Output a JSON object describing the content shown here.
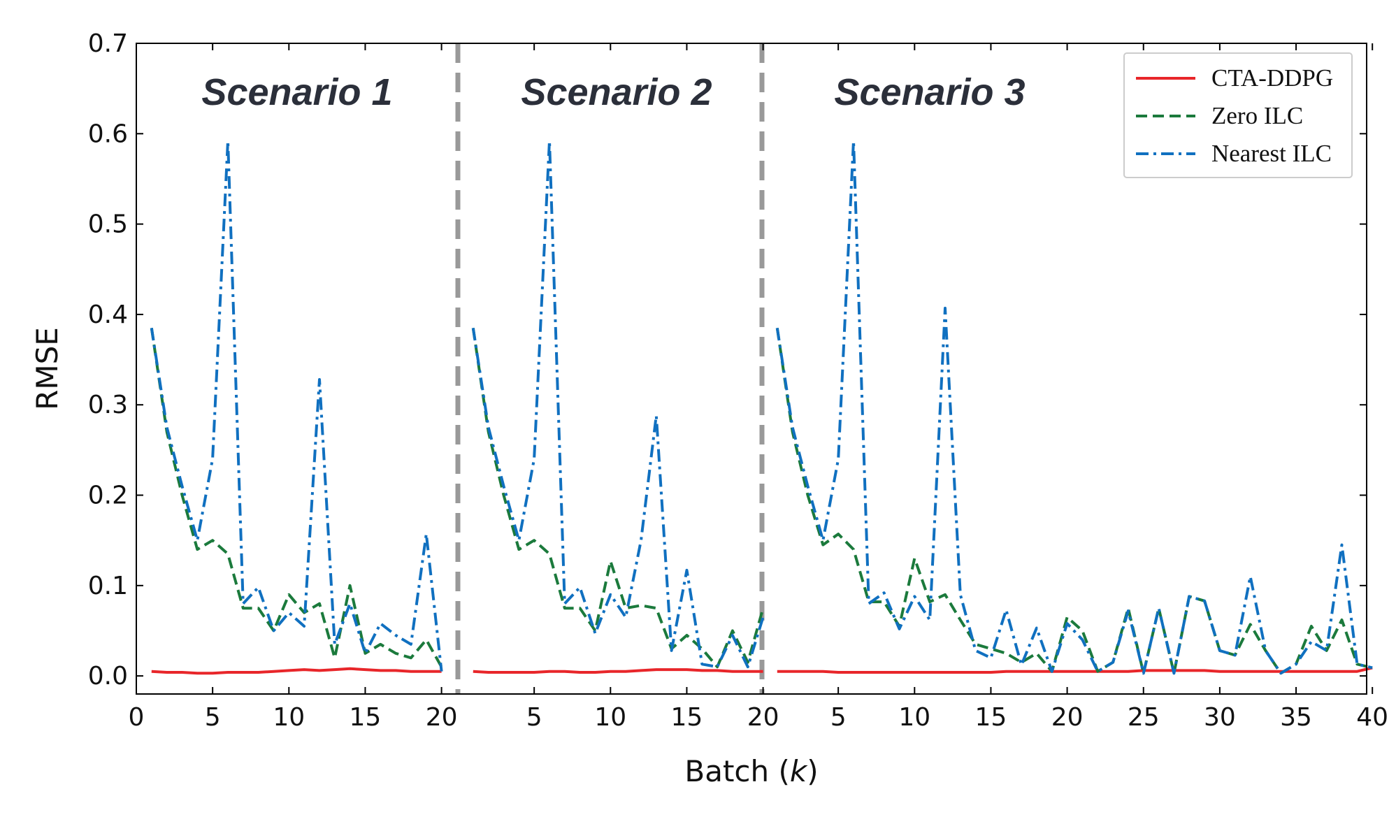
{
  "chart_data": {
    "type": "line",
    "title": "",
    "xlabel": "Batch (k)",
    "xlabel_parts": {
      "before": "Batch (",
      "var": "k",
      "after": ")"
    },
    "ylabel": "RMSE",
    "ylim": [
      -0.02,
      0.7
    ],
    "yticks": [
      "0.0",
      "0.1",
      "0.2",
      "0.3",
      "0.4",
      "0.5",
      "0.6",
      "0.7"
    ],
    "grid": false,
    "legend_position": "top-right",
    "scenarios": [
      {
        "label": "Scenario 1",
        "batches": 20
      },
      {
        "label": "Scenario 2",
        "batches": 20
      },
      {
        "label": "Scenario 3",
        "batches": 40
      }
    ],
    "x_tick_labels": [
      "0",
      "5",
      "10",
      "15",
      "20",
      "5",
      "10",
      "15",
      "20",
      "5",
      "10",
      "15",
      "20",
      "25",
      "30",
      "35",
      "40"
    ],
    "series": [
      {
        "name": "CTA-DDPG",
        "color": "#e8262a",
        "dash": "solid",
        "segments": [
          [
            0.005,
            0.004,
            0.004,
            0.003,
            0.003,
            0.004,
            0.004,
            0.004,
            0.005,
            0.006,
            0.007,
            0.006,
            0.007,
            0.008,
            0.007,
            0.006,
            0.006,
            0.005,
            0.005,
            0.005
          ],
          [
            0.005,
            0.004,
            0.004,
            0.004,
            0.004,
            0.005,
            0.005,
            0.004,
            0.004,
            0.005,
            0.005,
            0.006,
            0.007,
            0.007,
            0.007,
            0.006,
            0.006,
            0.005,
            0.005,
            0.005
          ],
          [
            0.005,
            0.005,
            0.005,
            0.005,
            0.004,
            0.004,
            0.004,
            0.004,
            0.004,
            0.004,
            0.004,
            0.004,
            0.004,
            0.004,
            0.004,
            0.005,
            0.005,
            0.005,
            0.005,
            0.005,
            0.005,
            0.005,
            0.005,
            0.005,
            0.006,
            0.006,
            0.006,
            0.006,
            0.006,
            0.005,
            0.005,
            0.005,
            0.005,
            0.005,
            0.005,
            0.005,
            0.005,
            0.005,
            0.005,
            0.009
          ]
        ]
      },
      {
        "name": "Zero ILC",
        "color": "#1b7a3c",
        "dash": "dashed",
        "segments": [
          [
            0.385,
            0.27,
            0.2,
            0.14,
            0.15,
            0.135,
            0.075,
            0.075,
            0.05,
            0.09,
            0.07,
            0.08,
            0.02,
            0.1,
            0.025,
            0.035,
            0.025,
            0.02,
            0.04,
            0.01
          ],
          [
            0.385,
            0.27,
            0.2,
            0.14,
            0.15,
            0.135,
            0.075,
            0.075,
            0.05,
            0.127,
            0.075,
            0.078,
            0.075,
            0.03,
            0.045,
            0.03,
            0.01,
            0.05,
            0.015,
            0.075
          ],
          [
            0.385,
            0.27,
            0.2,
            0.145,
            0.157,
            0.14,
            0.082,
            0.082,
            0.055,
            0.13,
            0.082,
            0.09,
            0.062,
            0.035,
            0.03,
            0.025,
            0.015,
            0.025,
            0.005,
            0.065,
            0.05,
            0.005,
            0.015,
            0.075,
            0.003,
            0.075,
            0.003,
            0.088,
            0.083,
            0.028,
            0.023,
            0.057,
            0.028,
            0.003,
            0.013,
            0.055,
            0.028,
            0.062,
            0.013,
            0.009
          ]
        ]
      },
      {
        "name": "Nearest ILC",
        "color": "#1070c0",
        "dash": "dashdot",
        "segments": [
          [
            0.385,
            0.275,
            0.21,
            0.15,
            0.24,
            0.592,
            0.08,
            0.098,
            0.05,
            0.07,
            0.055,
            0.328,
            0.035,
            0.08,
            0.025,
            0.058,
            0.045,
            0.035,
            0.157,
            0.005
          ],
          [
            0.385,
            0.275,
            0.21,
            0.15,
            0.24,
            0.592,
            0.08,
            0.098,
            0.047,
            0.09,
            0.065,
            0.15,
            0.288,
            0.028,
            0.117,
            0.013,
            0.01,
            0.045,
            0.01,
            0.065
          ],
          [
            0.385,
            0.275,
            0.21,
            0.15,
            0.24,
            0.592,
            0.08,
            0.092,
            0.052,
            0.088,
            0.062,
            0.407,
            0.09,
            0.028,
            0.02,
            0.073,
            0.012,
            0.053,
            0.005,
            0.058,
            0.04,
            0.005,
            0.015,
            0.072,
            0.003,
            0.075,
            0.003,
            0.088,
            0.083,
            0.028,
            0.023,
            0.11,
            0.028,
            0.003,
            0.013,
            0.038,
            0.028,
            0.145,
            0.013,
            0.009
          ]
        ]
      }
    ]
  }
}
